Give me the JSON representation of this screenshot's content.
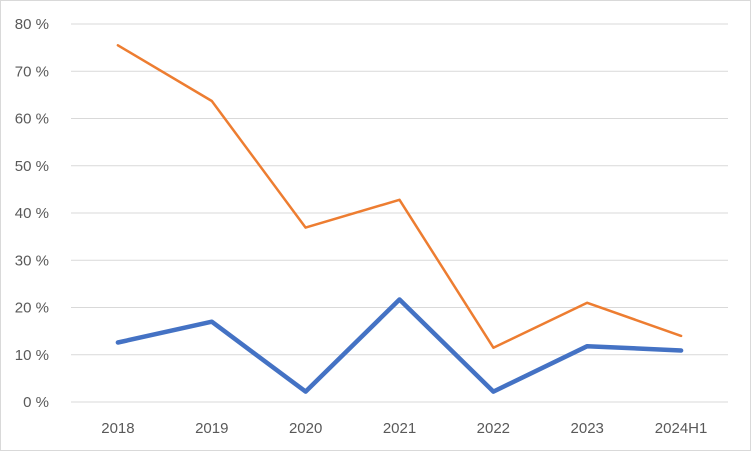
{
  "chart_data": {
    "type": "line",
    "categories": [
      "2018",
      "2019",
      "2020",
      "2021",
      "2022",
      "2023",
      "2024H1"
    ],
    "ylim": [
      0,
      80
    ],
    "yticks": [
      0,
      10,
      20,
      30,
      40,
      50,
      60,
      70,
      80
    ],
    "ytick_labels": [
      "0 %",
      "10 %",
      "20 %",
      "30 %",
      "40 %",
      "50 %",
      "60 %",
      "70 %",
      "80 %"
    ],
    "grid": true,
    "legend": "none",
    "series": [
      {
        "color": "#4472c4",
        "values": [
          12.6,
          17.0,
          2.2,
          21.7,
          2.2,
          11.8,
          10.9
        ]
      },
      {
        "color": "#ed7d31",
        "values": [
          75.5,
          63.7,
          36.9,
          42.8,
          11.5,
          21.0,
          14.0
        ]
      }
    ]
  }
}
